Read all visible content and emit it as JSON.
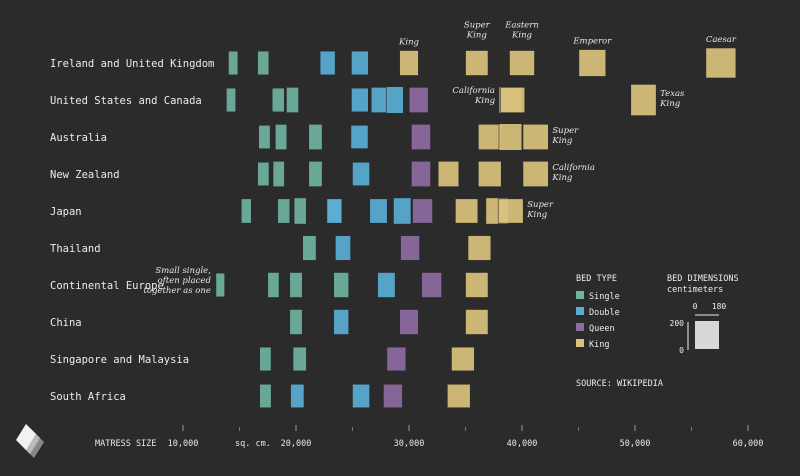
{
  "chart_data": {
    "type": "scatter",
    "title": "",
    "xlabel": "MATRESS SIZE",
    "x_unit": "sq. cm.",
    "xlim": [
      1000,
      61000
    ],
    "x_ticks": [
      10000,
      20000,
      30000,
      40000,
      50000,
      60000
    ],
    "x_tick_labels": [
      "10,000",
      "20,000",
      "30,000",
      "40,000",
      "50,000",
      "60,000"
    ],
    "categories": [
      "Ireland and United Kingdom",
      "United States and Canada",
      "Australia",
      "New Zealand",
      "Japan",
      "Thailand",
      "Continental Europe",
      "China",
      "Singapore and Malaysia",
      "South Africa"
    ],
    "colors": {
      "Single": "#6fb3a1",
      "Double": "#5aaed6",
      "Queen": "#8e6aa2",
      "King": "#d9c27d"
    },
    "legend": {
      "title": "BED TYPE",
      "items": [
        "Single",
        "Double",
        "Queen",
        "King"
      ],
      "colors": [
        "#6fb3a1",
        "#5aaed6",
        "#8e6aa2",
        "#d9c27d"
      ]
    },
    "dims_legend": {
      "title": "BED DIMENSIONS",
      "subtitle": "centimeters",
      "width_labels": [
        "0",
        "180"
      ],
      "height_labels": [
        "200",
        "0"
      ]
    },
    "source": "SOURCE: WIKIPEDIA",
    "series": [
      {
        "name": "Ireland and United Kingdom",
        "beds": [
          {
            "type": "Single",
            "w": 76,
            "l": 190
          },
          {
            "type": "Single",
            "w": 90,
            "l": 190
          },
          {
            "type": "Double",
            "w": 120,
            "l": 190
          },
          {
            "type": "Double",
            "w": 135,
            "l": 190
          },
          {
            "type": "King",
            "w": 150,
            "l": 200,
            "label": "King"
          },
          {
            "type": "King",
            "w": 180,
            "l": 200,
            "label": "Super King"
          },
          {
            "type": "King",
            "w": 200,
            "l": 200,
            "label": "Eastern King"
          },
          {
            "type": "King",
            "w": 215,
            "l": 215,
            "label": "Emperor"
          },
          {
            "type": "King",
            "w": 240,
            "l": 240,
            "label": "Caesar"
          }
        ]
      },
      {
        "name": "United States and Canada",
        "beds": [
          {
            "type": "Single",
            "w": 75,
            "l": 190
          },
          {
            "type": "Single",
            "w": 97,
            "l": 190
          },
          {
            "type": "Single",
            "w": 97,
            "l": 203
          },
          {
            "type": "Double",
            "w": 135,
            "l": 190
          },
          {
            "type": "Double",
            "w": 135,
            "l": 203
          },
          {
            "type": "Double",
            "w": 135,
            "l": 213
          },
          {
            "type": "Queen",
            "w": 152,
            "l": 203
          },
          {
            "type": "King",
            "w": 183,
            "l": 213,
            "label": "California King"
          },
          {
            "type": "King",
            "w": 193,
            "l": 203
          },
          {
            "type": "King",
            "w": 203,
            "l": 250,
            "label": "Texas King"
          }
        ]
      },
      {
        "name": "Australia",
        "beds": [
          {
            "type": "Single",
            "w": 92,
            "l": 187
          },
          {
            "type": "Single",
            "w": 92,
            "l": 203
          },
          {
            "type": "Single",
            "w": 107,
            "l": 203
          },
          {
            "type": "Double",
            "w": 137,
            "l": 187
          },
          {
            "type": "Queen",
            "w": 153,
            "l": 203
          },
          {
            "type": "King",
            "w": 183,
            "l": 203
          },
          {
            "type": "King",
            "w": 183,
            "l": 213
          },
          {
            "type": "King",
            "w": 203,
            "l": 203,
            "label": "Super King"
          }
        ]
      },
      {
        "name": "New Zealand",
        "beds": [
          {
            "type": "Single",
            "w": 91,
            "l": 188
          },
          {
            "type": "Single",
            "w": 91,
            "l": 203
          },
          {
            "type": "Single",
            "w": 107,
            "l": 203
          },
          {
            "type": "Double",
            "w": 137,
            "l": 188
          },
          {
            "type": "Queen",
            "w": 153,
            "l": 203
          },
          {
            "type": "King",
            "w": 165,
            "l": 203
          },
          {
            "type": "King",
            "w": 183,
            "l": 203
          },
          {
            "type": "King",
            "w": 203,
            "l": 203,
            "label": "California King"
          }
        ]
      },
      {
        "name": "Japan",
        "beds": [
          {
            "type": "Single",
            "w": 80,
            "l": 195
          },
          {
            "type": "Single",
            "w": 97,
            "l": 195
          },
          {
            "type": "Single",
            "w": 97,
            "l": 210
          },
          {
            "type": "Single",
            "w": 120,
            "l": 195
          },
          {
            "type": "Double",
            "w": 120,
            "l": 195
          },
          {
            "type": "Double",
            "w": 140,
            "l": 195
          },
          {
            "type": "Double",
            "w": 140,
            "l": 210
          },
          {
            "type": "Queen",
            "w": 160,
            "l": 195
          },
          {
            "type": "King",
            "w": 180,
            "l": 195
          },
          {
            "type": "King",
            "w": 180,
            "l": 210
          },
          {
            "type": "King",
            "w": 200,
            "l": 195,
            "label": "Super King"
          }
        ]
      },
      {
        "name": "Thailand",
        "beds": [
          {
            "type": "Single",
            "w": 107,
            "l": 198
          },
          {
            "type": "Double",
            "w": 122,
            "l": 198
          },
          {
            "type": "Queen",
            "w": 152,
            "l": 198
          },
          {
            "type": "King",
            "w": 183,
            "l": 198
          }
        ]
      },
      {
        "name": "Continental Europe",
        "beds": [
          {
            "type": "Single",
            "w": 70,
            "l": 190,
            "label": "Small single, often placed together as one"
          },
          {
            "type": "Single",
            "w": 90,
            "l": 200
          },
          {
            "type": "Single",
            "w": 100,
            "l": 200
          },
          {
            "type": "Single",
            "w": 120,
            "l": 200
          },
          {
            "type": "Double",
            "w": 140,
            "l": 200
          },
          {
            "type": "Queen",
            "w": 160,
            "l": 200
          },
          {
            "type": "King",
            "w": 180,
            "l": 200
          }
        ]
      },
      {
        "name": "China",
        "beds": [
          {
            "type": "Single",
            "w": 100,
            "l": 200
          },
          {
            "type": "Double",
            "w": 120,
            "l": 200
          },
          {
            "type": "Queen",
            "w": 150,
            "l": 200
          },
          {
            "type": "King",
            "w": 180,
            "l": 200
          }
        ]
      },
      {
        "name": "Singapore and Malaysia",
        "beds": [
          {
            "type": "Single",
            "w": 91,
            "l": 190
          },
          {
            "type": "Single",
            "w": 107,
            "l": 190
          },
          {
            "type": "Queen",
            "w": 152,
            "l": 190
          },
          {
            "type": "King",
            "w": 183,
            "l": 190
          }
        ]
      },
      {
        "name": "South Africa",
        "beds": [
          {
            "type": "Single",
            "w": 92,
            "l": 188
          },
          {
            "type": "Double",
            "w": 107,
            "l": 188
          },
          {
            "type": "Double",
            "w": 137,
            "l": 188
          },
          {
            "type": "Queen",
            "w": 152,
            "l": 188
          },
          {
            "type": "King",
            "w": 183,
            "l": 188
          }
        ]
      }
    ]
  }
}
